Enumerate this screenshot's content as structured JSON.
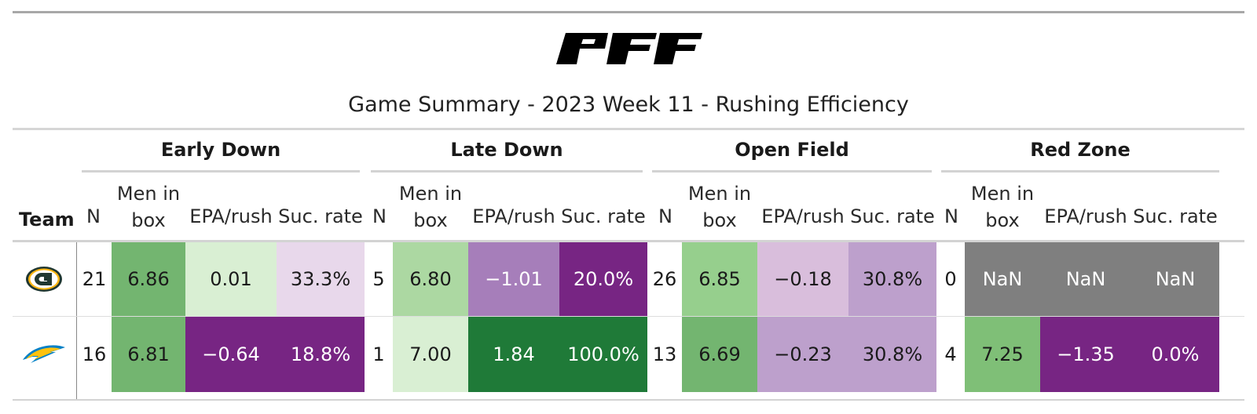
{
  "header": {
    "logo_text": "PFF",
    "title": "Game Summary - 2023 Week 11 - Rushing Efficiency"
  },
  "groups": [
    "Early Down",
    "Late Down",
    "Open Field",
    "Red Zone"
  ],
  "columns": {
    "team": "Team",
    "n": "N",
    "men_line1": "Men in",
    "men_line2": "box",
    "epa": "EPA/rush",
    "suc": "Suc. rate"
  },
  "rows": [
    {
      "team_icon": "packers-logo-icon",
      "cells": [
        {
          "value": "21",
          "bg": "#ffffff",
          "fg": "#1a1a1a"
        },
        {
          "value": "6.86",
          "bg": "#73b570",
          "fg": "#1a1a1a"
        },
        {
          "value": "0.01",
          "bg": "#d9efd3",
          "fg": "#1a1a1a"
        },
        {
          "value": "33.3%",
          "bg": "#e8d8eb",
          "fg": "#1a1a1a"
        },
        {
          "value": "5",
          "bg": "#ffffff",
          "fg": "#1a1a1a"
        },
        {
          "value": "6.80",
          "bg": "#acd8a2",
          "fg": "#1a1a1a"
        },
        {
          "value": "−1.01",
          "bg": "#a67eba",
          "fg": "#ffffff"
        },
        {
          "value": "20.0%",
          "bg": "#772583",
          "fg": "#ffffff"
        },
        {
          "value": "26",
          "bg": "#ffffff",
          "fg": "#1a1a1a"
        },
        {
          "value": "6.85",
          "bg": "#96cf8d",
          "fg": "#1a1a1a"
        },
        {
          "value": "−0.18",
          "bg": "#d9bedc",
          "fg": "#1a1a1a"
        },
        {
          "value": "30.8%",
          "bg": "#bda0cc",
          "fg": "#1a1a1a"
        },
        {
          "value": "0",
          "bg": "#ffffff",
          "fg": "#1a1a1a"
        },
        {
          "value": "NaN",
          "bg": "#7f7f7f",
          "fg": "#ffffff"
        },
        {
          "value": "NaN",
          "bg": "#7f7f7f",
          "fg": "#ffffff"
        },
        {
          "value": "NaN",
          "bg": "#7f7f7f",
          "fg": "#ffffff"
        }
      ]
    },
    {
      "team_icon": "chargers-logo-icon",
      "cells": [
        {
          "value": "16",
          "bg": "#ffffff",
          "fg": "#1a1a1a"
        },
        {
          "value": "6.81",
          "bg": "#73b570",
          "fg": "#1a1a1a"
        },
        {
          "value": "−0.64",
          "bg": "#772583",
          "fg": "#ffffff"
        },
        {
          "value": "18.8%",
          "bg": "#772583",
          "fg": "#ffffff"
        },
        {
          "value": "1",
          "bg": "#ffffff",
          "fg": "#1a1a1a"
        },
        {
          "value": "7.00",
          "bg": "#d9efd3",
          "fg": "#1a1a1a"
        },
        {
          "value": "1.84",
          "bg": "#1f7a38",
          "fg": "#ffffff"
        },
        {
          "value": "100.0%",
          "bg": "#1f7a38",
          "fg": "#ffffff"
        },
        {
          "value": "13",
          "bg": "#ffffff",
          "fg": "#1a1a1a"
        },
        {
          "value": "6.69",
          "bg": "#73b570",
          "fg": "#1a1a1a"
        },
        {
          "value": "−0.23",
          "bg": "#bda0cc",
          "fg": "#1a1a1a"
        },
        {
          "value": "30.8%",
          "bg": "#bda0cc",
          "fg": "#1a1a1a"
        },
        {
          "value": "4",
          "bg": "#ffffff",
          "fg": "#1a1a1a"
        },
        {
          "value": "7.25",
          "bg": "#7fbf77",
          "fg": "#1a1a1a"
        },
        {
          "value": "−1.35",
          "bg": "#772583",
          "fg": "#ffffff"
        },
        {
          "value": "0.0%",
          "bg": "#772583",
          "fg": "#ffffff"
        }
      ]
    }
  ]
}
